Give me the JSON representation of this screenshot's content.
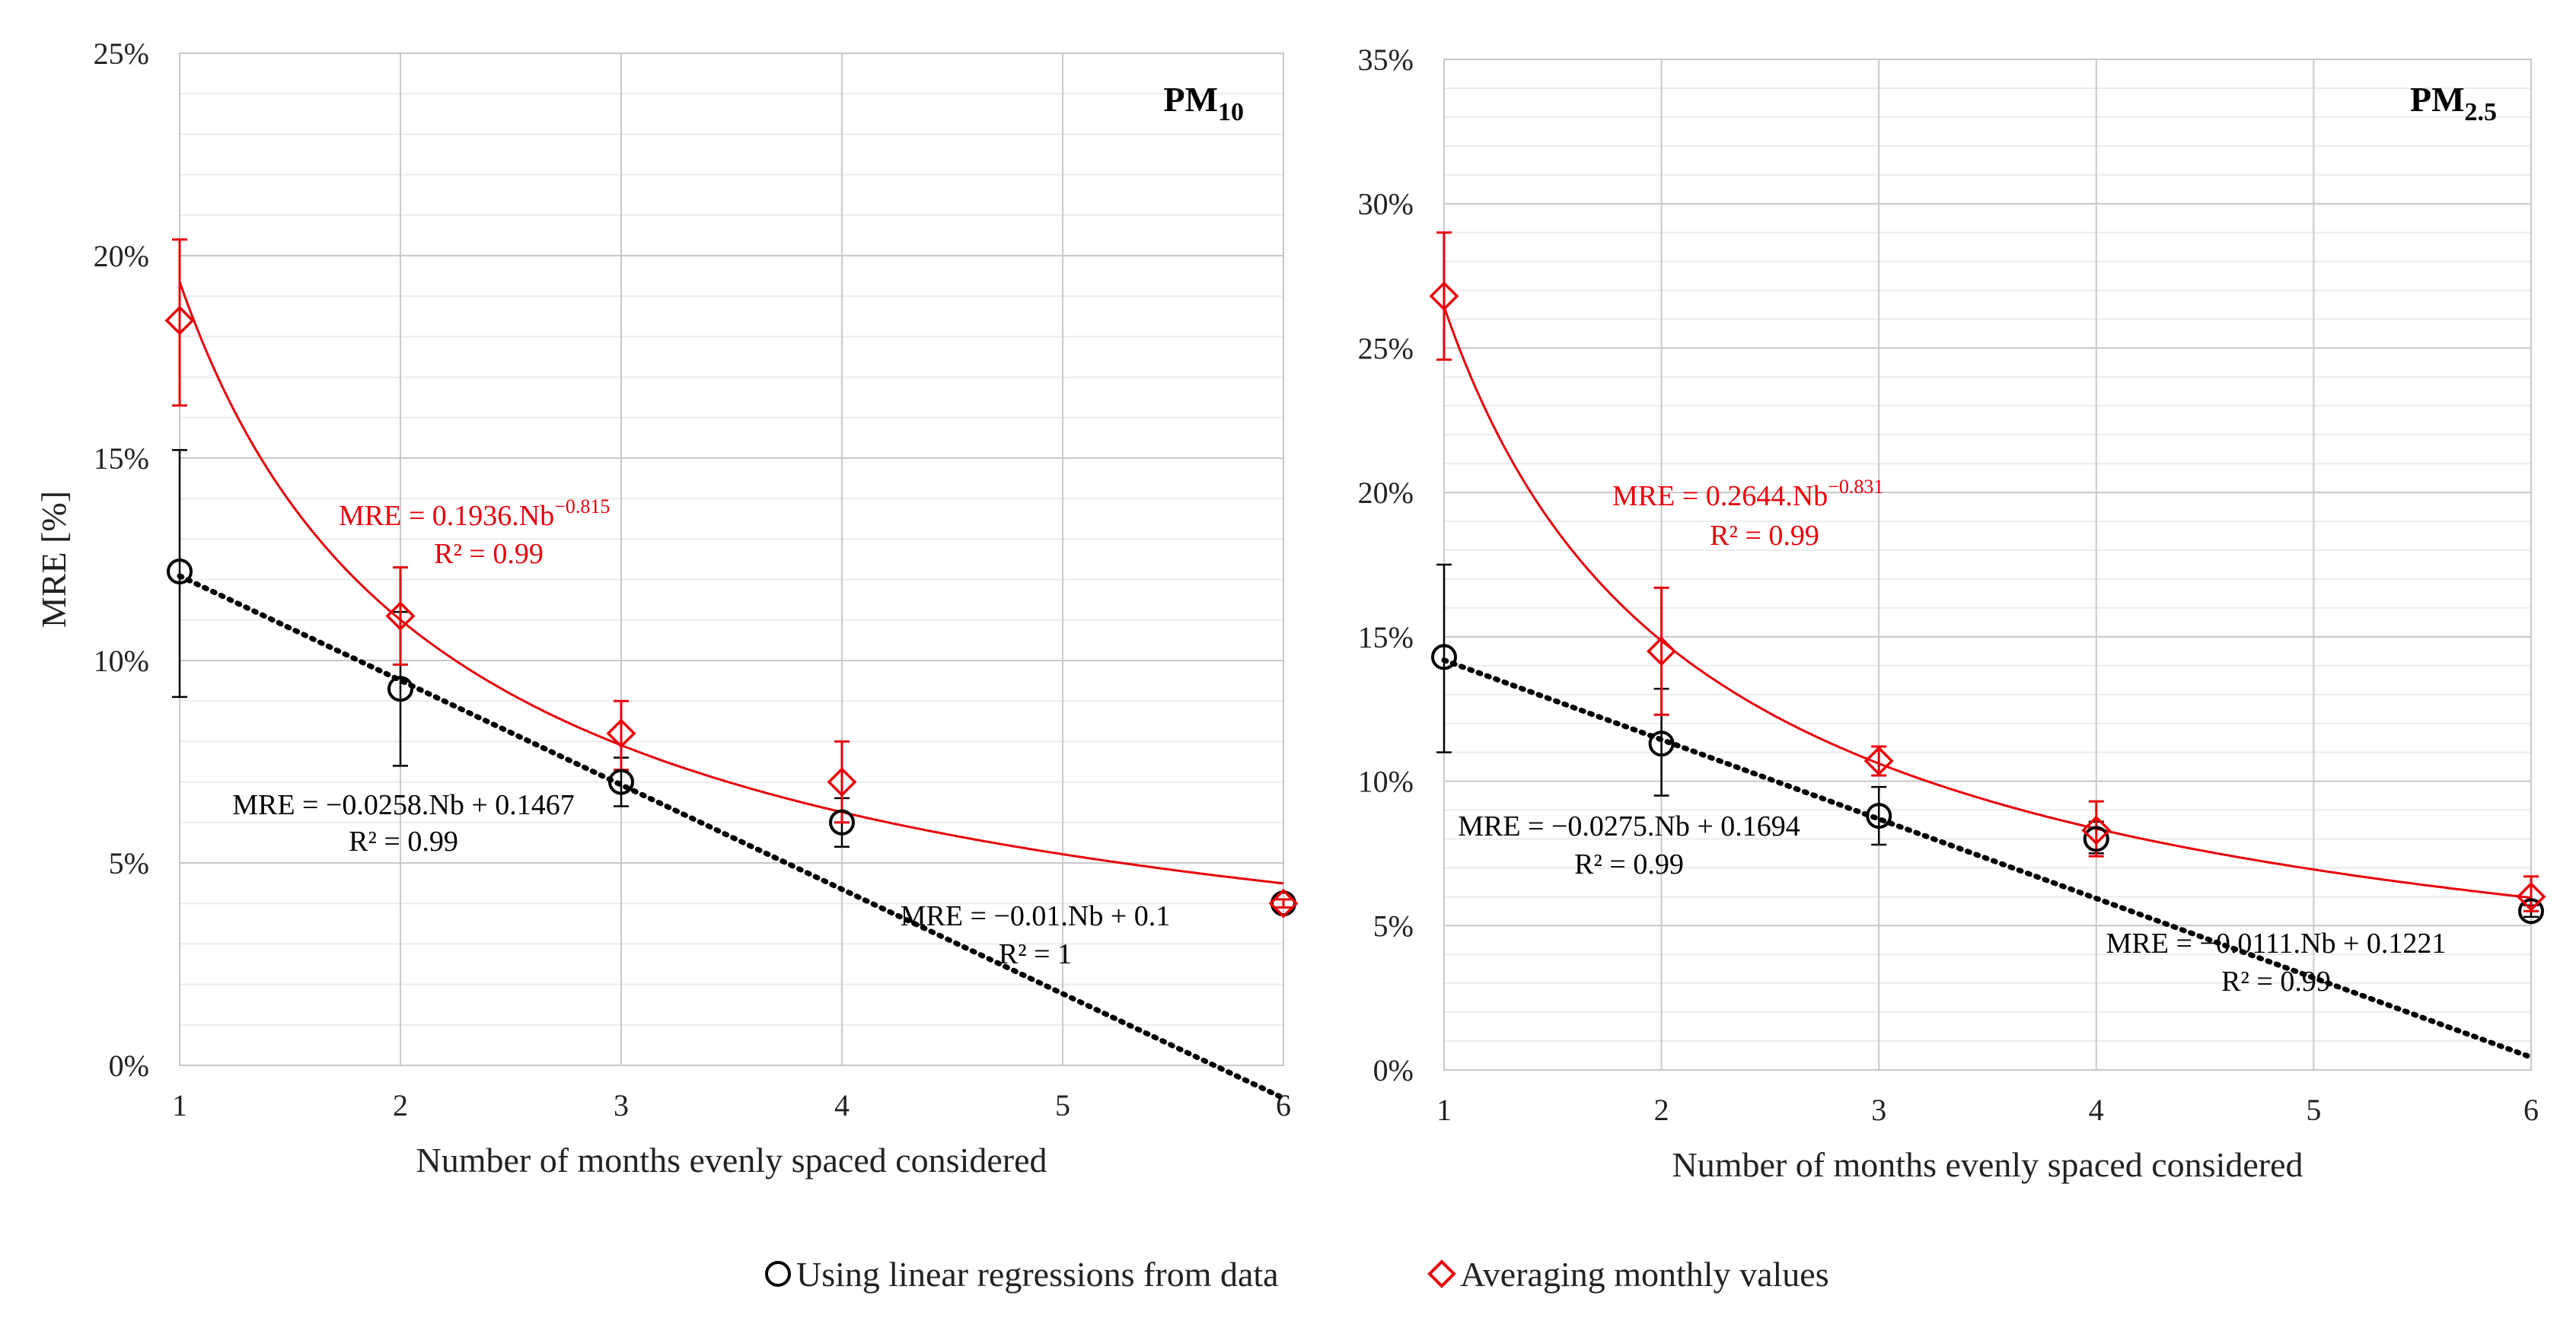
{
  "chart_data": [
    {
      "type": "scatter",
      "panel_label": "PM",
      "panel_subscript": "10",
      "xlabel": "Number of months evenly spaced considered",
      "ylabel": "MRE [%]",
      "ylim": [
        0,
        25
      ],
      "ytick_step": 5,
      "yminor_step": 1,
      "xlim": [
        1,
        6
      ],
      "x_ticks": [
        1,
        2,
        3,
        4,
        5,
        6
      ],
      "series": [
        {
          "name": "Using linear regressions from data",
          "marker": "circle",
          "color": "#000000",
          "x": [
            1,
            2,
            3,
            4,
            6
          ],
          "y": [
            12.2,
            9.3,
            7.0,
            6.0,
            4.0
          ],
          "err_low": [
            9.1,
            7.4,
            6.4,
            5.4,
            3.9
          ],
          "err_high": [
            15.2,
            11.2,
            7.6,
            6.6,
            4.1
          ],
          "fit": {
            "kind": "linear",
            "slope": -0.0258,
            "intercept": 0.1467
          },
          "fit_label": "MRE = −0.0258.Nb + 0.1467",
          "r2_label": "R² = 0.99"
        },
        {
          "name": "Averaging monthly values",
          "marker": "diamond",
          "color": "#e8000b",
          "x": [
            1,
            2,
            3,
            4,
            6
          ],
          "y": [
            18.4,
            11.1,
            8.2,
            7.0,
            4.0
          ],
          "err_low": [
            16.3,
            9.9,
            7.3,
            6.0,
            3.9
          ],
          "err_high": [
            20.4,
            12.3,
            9.0,
            8.0,
            4.1
          ],
          "fit": {
            "kind": "power",
            "coef": 0.1936,
            "exp": -0.815
          },
          "fit_label_main": "MRE = 0.1936.Nb",
          "fit_label_exp": "−0.815",
          "r2_label": "R² = 0.99"
        }
      ],
      "annotations": [
        {
          "text": "MRE = −0.01.Nb + 0.1",
          "color": "#000000"
        },
        {
          "text": "R² = 1",
          "color": "#000000"
        }
      ]
    },
    {
      "type": "scatter",
      "panel_label": "PM",
      "panel_subscript": "2.5",
      "xlabel": "Number of months evenly spaced considered",
      "ylabel": "",
      "ylim": [
        0,
        35
      ],
      "ytick_step": 5,
      "yminor_step": 1,
      "xlim": [
        1,
        6
      ],
      "x_ticks": [
        1,
        2,
        3,
        4,
        5,
        6
      ],
      "series": [
        {
          "name": "Using linear regressions from data",
          "marker": "circle",
          "color": "#000000",
          "x": [
            1,
            2,
            3,
            4,
            6
          ],
          "y": [
            14.3,
            11.3,
            8.8,
            8.0,
            5.5
          ],
          "err_low": [
            11.0,
            9.5,
            7.8,
            7.5,
            5.3
          ],
          "err_high": [
            17.5,
            13.2,
            9.8,
            8.6,
            5.7
          ],
          "fit": {
            "kind": "linear",
            "slope": -0.0275,
            "intercept": 0.1694
          },
          "fit_label": "MRE = −0.0275.Nb + 0.1694",
          "r2_label": "R² = 0.99"
        },
        {
          "name": "Averaging monthly values",
          "marker": "diamond",
          "color": "#e8000b",
          "x": [
            1,
            2,
            3,
            4,
            6
          ],
          "y": [
            26.8,
            14.5,
            10.7,
            8.3,
            6.0
          ],
          "err_low": [
            24.6,
            12.3,
            10.2,
            7.4,
            5.5
          ],
          "err_high": [
            29.0,
            16.7,
            11.2,
            9.3,
            6.7
          ],
          "fit": {
            "kind": "power",
            "coef": 0.2644,
            "exp": -0.831
          },
          "fit_label_main": "MRE = 0.2644.Nb",
          "fit_label_exp": "−0.831",
          "r2_label": "R² = 0.99"
        }
      ],
      "annotations": [
        {
          "text": "MRE = −0.0111.Nb + 0.1221",
          "color": "#000000"
        },
        {
          "text": "R² = 0.99",
          "color": "#000000"
        }
      ]
    }
  ],
  "legend": {
    "position": "bottom-center",
    "items": [
      {
        "label": "Using linear regressions from data",
        "marker": "circle",
        "color": "#000000"
      },
      {
        "label": "Averaging monthly values",
        "marker": "diamond",
        "color": "#e8000b"
      }
    ]
  }
}
